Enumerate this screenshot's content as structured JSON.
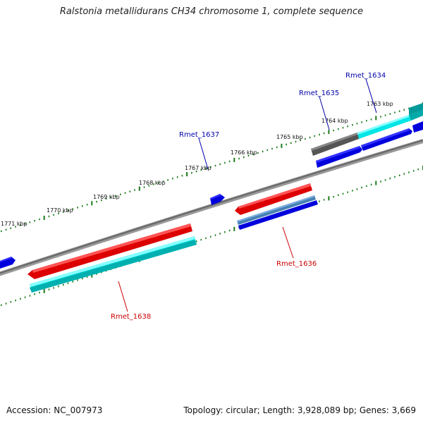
{
  "title": "Ralstonia metallidurans CH34 chromosome 1, complete sequence",
  "footer": {
    "accession": "Accession: NC_007973",
    "summary": "Topology: circular; Length: 3,928,089 bp; Genes: 3,669"
  },
  "ticks": [
    "1763 kbp",
    "1764 kbp",
    "1765 kbp",
    "1766 kbp",
    "1767 kbp",
    "1768 kbp",
    "1769 kbp",
    "1770 kbp",
    "1771 kbp"
  ],
  "genes": [
    {
      "name": "Rmet_1634",
      "color": "#0000aa"
    },
    {
      "name": "Rmet_1635",
      "color": "#0000aa"
    },
    {
      "name": "Rmet_1636",
      "color": "#cc0000"
    },
    {
      "name": "Rmet_1637",
      "color": "#0000aa"
    },
    {
      "name": "Rmet_1638",
      "color": "#cc0000"
    }
  ],
  "colors": {
    "forward_gene": "#0000ee",
    "reverse_gene": "#ee0000",
    "cds_cyan": "#00eeee",
    "backbone": "#777777",
    "tick": "#1a7a1a",
    "gray_feature": "#555555",
    "steel_feature": "#4682b4"
  }
}
